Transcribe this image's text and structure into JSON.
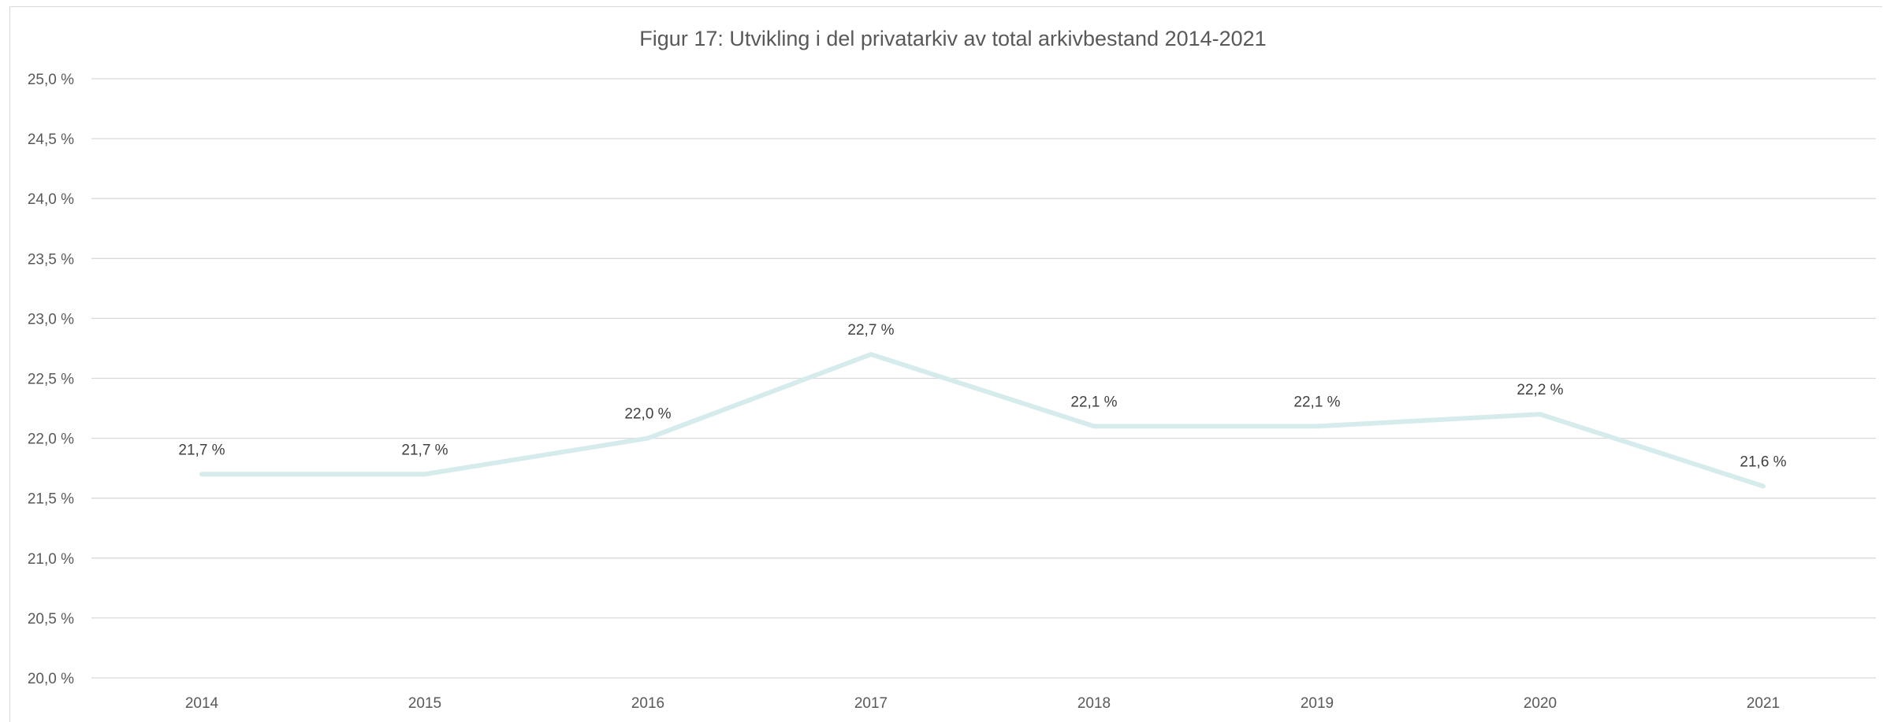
{
  "chart_data": {
    "type": "line",
    "title": "Figur 17: Utvikling i del privatarkiv av total arkivbestand 2014-2021",
    "xlabel": "",
    "ylabel": "",
    "categories": [
      "2014",
      "2015",
      "2016",
      "2017",
      "2018",
      "2019",
      "2020",
      "2021"
    ],
    "values": [
      21.7,
      21.7,
      22.0,
      22.7,
      22.1,
      22.1,
      22.2,
      21.6
    ],
    "data_labels": [
      "21,7 %",
      "21,7 %",
      "22,0 %",
      "22,7 %",
      "22,1 %",
      "22,1 %",
      "22,2 %",
      "21,6 %"
    ],
    "ylim": [
      20.0,
      25.0
    ],
    "y_ticks": [
      20.0,
      20.5,
      21.0,
      21.5,
      22.0,
      22.5,
      23.0,
      23.5,
      24.0,
      24.5,
      25.0
    ],
    "y_tick_labels": [
      "20,0 %",
      "20,5 %",
      "21,0 %",
      "21,5 %",
      "22,0 %",
      "22,5 %",
      "23,0 %",
      "23,5 %",
      "24,0 %",
      "24,5 %",
      "25,0 %"
    ],
    "grid": true,
    "legend": "none",
    "colors": {
      "line": "#d6ecec",
      "grid": "#d9d9d9",
      "text": "#595959"
    }
  }
}
